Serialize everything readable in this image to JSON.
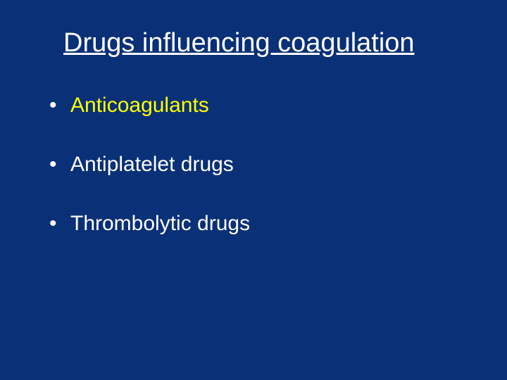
{
  "slide": {
    "background_color": "#0a3077",
    "title": "Drugs influencing coagulation",
    "title_color": "#ffffff",
    "title_fontsize": 38,
    "title_fontweight": "400",
    "bullets": [
      {
        "text": "Anticoagulants",
        "color": "#ffff00"
      },
      {
        "text": "Antiplatelet drugs",
        "color": "#ffffff"
      },
      {
        "text": "Thrombolytic drugs",
        "color": "#ffffff"
      }
    ],
    "bullet_fontsize": 30,
    "bullet_marker_color": "#ffffff"
  }
}
